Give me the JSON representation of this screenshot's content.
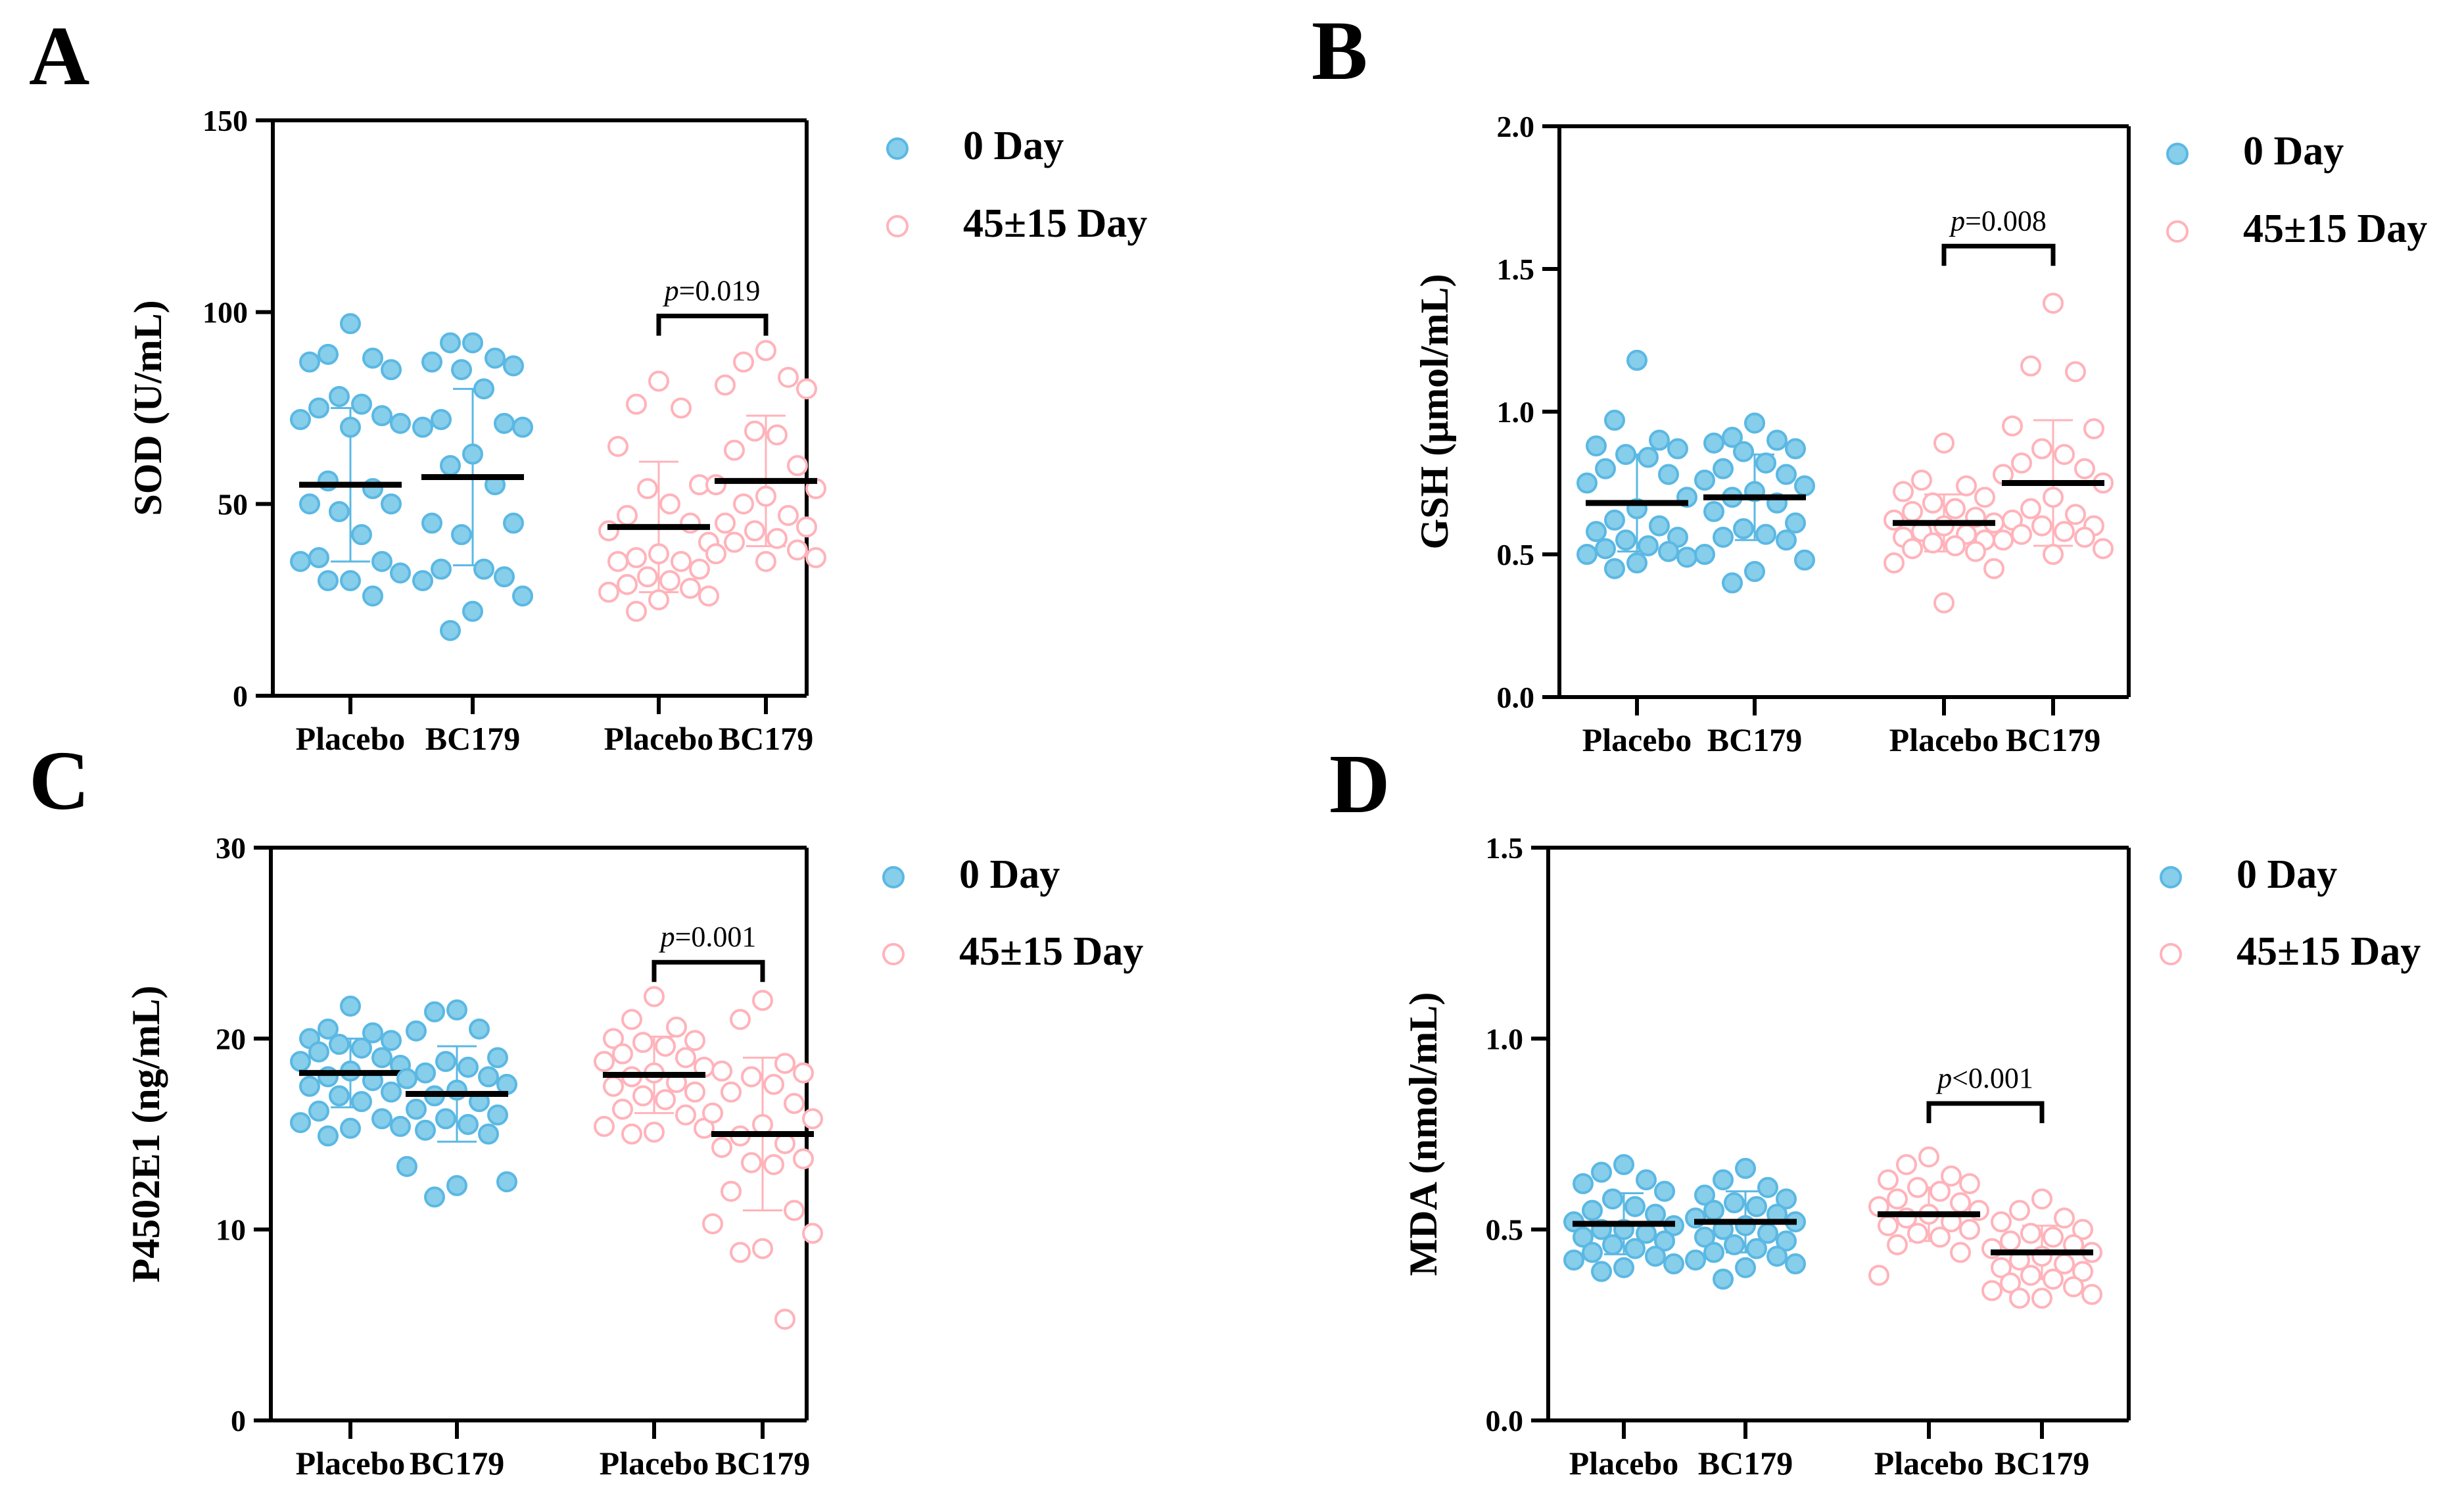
{
  "colors": {
    "day0_fill": "#87CEEB",
    "day0_stroke": "#5BB8E3",
    "day45_fill": "#FFFFFF",
    "day45_stroke": "#FFB3BA",
    "axis": "#000000",
    "mean_line": "#000000"
  },
  "legend": {
    "day0": "0 Day",
    "day45": "45±15 Day"
  },
  "chart_data": [
    {
      "panel": "A",
      "type": "scatter",
      "ylabel": "SOD (U/mL)",
      "ylim": [
        0,
        150
      ],
      "yticks": [
        0,
        50,
        100,
        150
      ],
      "categories": [
        "Placebo",
        "BC179",
        "Placebo",
        "BC179"
      ],
      "pvalue": {
        "prefix": "p",
        "text": "=0.019",
        "between": [
          2,
          3
        ]
      },
      "groups": [
        {
          "label": "Placebo",
          "timepoint": "0 Day",
          "mean": 55,
          "sd": 20,
          "values": [
            97,
            89,
            88,
            87,
            85,
            78,
            76,
            75,
            73,
            72,
            71,
            70,
            56,
            54,
            50,
            50,
            48,
            42,
            36,
            35,
            35,
            32,
            30,
            30,
            26
          ]
        },
        {
          "label": "BC179",
          "timepoint": "0 Day",
          "mean": 57,
          "sd": 23,
          "values": [
            92,
            92,
            88,
            87,
            86,
            85,
            80,
            72,
            71,
            70,
            70,
            63,
            60,
            55,
            45,
            45,
            42,
            33,
            33,
            31,
            30,
            26,
            22,
            17
          ]
        },
        {
          "label": "Placebo",
          "timepoint": "45±15 Day",
          "mean": 44,
          "sd": 17,
          "values": [
            82,
            76,
            75,
            65,
            55,
            54,
            50,
            47,
            45,
            43,
            40,
            37,
            36,
            35,
            35,
            33,
            31,
            30,
            29,
            28,
            27,
            26,
            25,
            22
          ]
        },
        {
          "label": "BC179",
          "timepoint": "45±15 Day",
          "mean": 56,
          "sd": 17,
          "values": [
            90,
            87,
            83,
            81,
            80,
            69,
            68,
            64,
            60,
            55,
            54,
            52,
            50,
            47,
            45,
            44,
            43,
            41,
            40,
            38,
            37,
            36,
            35
          ]
        }
      ]
    },
    {
      "panel": "B",
      "type": "scatter",
      "ylabel": "GSH (μmol/mL)",
      "ylim": [
        0,
        2.0
      ],
      "yticks": [
        "0.0",
        "0.5",
        "1.0",
        "1.5",
        "2.0"
      ],
      "categories": [
        "Placebo",
        "BC179",
        "Placebo",
        "BC179"
      ],
      "pvalue": {
        "prefix": "p",
        "text": "=0.008",
        "between": [
          2,
          3
        ]
      },
      "groups": [
        {
          "label": "Placebo",
          "timepoint": "0 Day",
          "mean": 0.68,
          "sd": 0.17,
          "values": [
            1.18,
            0.97,
            0.9,
            0.88,
            0.87,
            0.85,
            0.84,
            0.8,
            0.78,
            0.75,
            0.7,
            0.66,
            0.62,
            0.6,
            0.58,
            0.56,
            0.55,
            0.53,
            0.52,
            0.51,
            0.5,
            0.49,
            0.47,
            0.45
          ]
        },
        {
          "label": "BC179",
          "timepoint": "0 Day",
          "mean": 0.7,
          "sd": 0.15,
          "values": [
            0.96,
            0.91,
            0.9,
            0.89,
            0.87,
            0.86,
            0.82,
            0.8,
            0.78,
            0.76,
            0.74,
            0.72,
            0.7,
            0.68,
            0.65,
            0.61,
            0.59,
            0.57,
            0.56,
            0.55,
            0.5,
            0.48,
            0.44,
            0.4
          ]
        },
        {
          "label": "Placebo",
          "timepoint": "45±15 Day",
          "mean": 0.61,
          "sd": 0.1,
          "values": [
            0.89,
            0.76,
            0.74,
            0.72,
            0.7,
            0.68,
            0.66,
            0.65,
            0.63,
            0.62,
            0.61,
            0.6,
            0.58,
            0.57,
            0.56,
            0.55,
            0.54,
            0.53,
            0.52,
            0.51,
            0.47,
            0.45,
            0.33
          ]
        },
        {
          "label": "BC179",
          "timepoint": "45±15 Day",
          "mean": 0.75,
          "sd": 0.22,
          "values": [
            1.38,
            1.16,
            1.14,
            0.95,
            0.94,
            0.87,
            0.85,
            0.82,
            0.8,
            0.78,
            0.75,
            0.7,
            0.66,
            0.64,
            0.62,
            0.6,
            0.6,
            0.58,
            0.57,
            0.56,
            0.55,
            0.52,
            0.5
          ]
        }
      ]
    },
    {
      "panel": "C",
      "type": "scatter",
      "ylabel": "P4502E1 (ng/mL)",
      "ylim": [
        0,
        30
      ],
      "yticks": [
        0,
        10,
        20,
        30
      ],
      "categories": [
        "Placebo",
        "BC179",
        "Placebo",
        "BC179"
      ],
      "pvalue": {
        "prefix": "p",
        "text": "=0.001",
        "between": [
          2,
          3
        ]
      },
      "groups": [
        {
          "label": "Placebo",
          "timepoint": "0 Day",
          "mean": 18.2,
          "sd": 1.8,
          "values": [
            21.7,
            20.5,
            20.3,
            20.0,
            19.9,
            19.7,
            19.5,
            19.3,
            19.0,
            18.8,
            18.6,
            18.3,
            18.0,
            17.8,
            17.5,
            17.2,
            17.0,
            16.7,
            16.2,
            15.8,
            15.6,
            15.4,
            15.3,
            14.9
          ]
        },
        {
          "label": "BC179",
          "timepoint": "0 Day",
          "mean": 17.1,
          "sd": 2.5,
          "values": [
            21.5,
            21.4,
            20.5,
            20.4,
            19.0,
            18.8,
            18.5,
            18.2,
            18.0,
            17.9,
            17.6,
            17.3,
            17.0,
            16.7,
            16.3,
            16.0,
            15.8,
            15.5,
            15.2,
            15.0,
            13.3,
            12.5,
            12.3,
            11.7
          ]
        },
        {
          "label": "Placebo",
          "timepoint": "45±15 Day",
          "mean": 18.1,
          "sd": 2.0,
          "values": [
            22.2,
            21.0,
            20.6,
            20.0,
            19.9,
            19.8,
            19.6,
            19.2,
            19.0,
            18.8,
            18.5,
            18.2,
            18.0,
            17.7,
            17.5,
            17.2,
            17.0,
            16.8,
            16.3,
            16.0,
            15.4,
            15.3,
            15.1,
            15.0
          ]
        },
        {
          "label": "BC179",
          "timepoint": "45±15 Day",
          "mean": 15.0,
          "sd": 4.0,
          "values": [
            22.0,
            21.0,
            18.7,
            18.3,
            18.2,
            18.0,
            17.6,
            17.2,
            16.6,
            16.1,
            15.8,
            15.5,
            14.9,
            14.5,
            14.3,
            13.7,
            13.5,
            13.4,
            12.0,
            11.0,
            10.3,
            9.8,
            9.0,
            8.8,
            5.3
          ]
        }
      ]
    },
    {
      "panel": "D",
      "type": "scatter",
      "ylabel": "MDA (nmol/mL)",
      "ylim": [
        0,
        1.5
      ],
      "yticks": [
        "0.0",
        "0.5",
        "1.0",
        "1.5"
      ],
      "categories": [
        "Placebo",
        "BC179",
        "Placebo",
        "BC179"
      ],
      "pvalue": {
        "prefix": "p",
        "text": "<0.001",
        "between": [
          2,
          3
        ]
      },
      "groups": [
        {
          "label": "Placebo",
          "timepoint": "0 Day",
          "mean": 0.515,
          "sd": 0.08,
          "values": [
            0.67,
            0.65,
            0.63,
            0.62,
            0.6,
            0.58,
            0.56,
            0.55,
            0.54,
            0.52,
            0.51,
            0.5,
            0.5,
            0.49,
            0.48,
            0.47,
            0.46,
            0.45,
            0.44,
            0.43,
            0.42,
            0.41,
            0.4,
            0.39
          ]
        },
        {
          "label": "BC179",
          "timepoint": "0 Day",
          "mean": 0.52,
          "sd": 0.08,
          "values": [
            0.66,
            0.63,
            0.61,
            0.59,
            0.58,
            0.57,
            0.56,
            0.55,
            0.54,
            0.53,
            0.52,
            0.51,
            0.5,
            0.49,
            0.48,
            0.47,
            0.46,
            0.45,
            0.44,
            0.43,
            0.42,
            0.41,
            0.4,
            0.37
          ]
        },
        {
          "label": "Placebo",
          "timepoint": "45±15 Day",
          "mean": 0.54,
          "sd": 0.07,
          "values": [
            0.69,
            0.67,
            0.64,
            0.63,
            0.62,
            0.61,
            0.6,
            0.58,
            0.57,
            0.56,
            0.55,
            0.54,
            0.53,
            0.52,
            0.51,
            0.5,
            0.49,
            0.48,
            0.46,
            0.44,
            0.38
          ]
        },
        {
          "label": "BC179",
          "timepoint": "45±15 Day",
          "mean": 0.44,
          "sd": 0.07,
          "values": [
            0.58,
            0.55,
            0.53,
            0.52,
            0.5,
            0.49,
            0.48,
            0.47,
            0.46,
            0.45,
            0.44,
            0.43,
            0.42,
            0.41,
            0.4,
            0.39,
            0.38,
            0.37,
            0.36,
            0.35,
            0.34,
            0.33,
            0.32,
            0.32
          ]
        }
      ]
    }
  ]
}
